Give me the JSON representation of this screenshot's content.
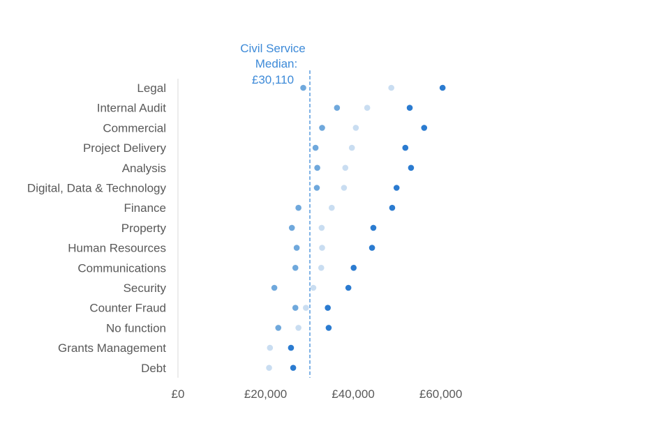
{
  "chart_data": {
    "type": "scatter",
    "title": "",
    "xlabel": "",
    "ylabel": "",
    "xlim": [
      0,
      65000
    ],
    "x_ticks": [
      0,
      20000,
      40000,
      60000
    ],
    "x_tick_labels": [
      "£0",
      "£20,000",
      "£40,000",
      "£60,000"
    ],
    "grid": false,
    "legend": "none",
    "categories": [
      "Legal",
      "Internal Audit",
      "Commercial",
      "Project Delivery",
      "Analysis",
      "Digital, Data & Technology",
      "Finance",
      "Property",
      "Human Resources",
      "Communications",
      "Security",
      "Counter Fraud",
      "No function",
      "Grants Management",
      "Debt"
    ],
    "series": [
      {
        "color": "#6fa8dc",
        "values": [
          28600,
          36300,
          32900,
          31400,
          31800,
          31700,
          27500,
          26000,
          27100,
          26800,
          22000,
          26800,
          22900,
          null,
          null
        ]
      },
      {
        "color": "#c9ddf1",
        "values": [
          48700,
          43200,
          40600,
          39700,
          38200,
          37900,
          35100,
          32800,
          32900,
          32700,
          30900,
          29200,
          27500,
          21000,
          20800
        ]
      },
      {
        "color": "#2b7bd0",
        "values": [
          60400,
          52900,
          56200,
          51900,
          53200,
          49900,
          48900,
          44600,
          44300,
          40100,
          38900,
          34200,
          34400,
          25800,
          26300
        ]
      }
    ],
    "reference_line": {
      "value": 30110,
      "label_lines": [
        "Civil Service",
        "Median:",
        "£30,110"
      ],
      "color": "#3d8ad8"
    }
  }
}
